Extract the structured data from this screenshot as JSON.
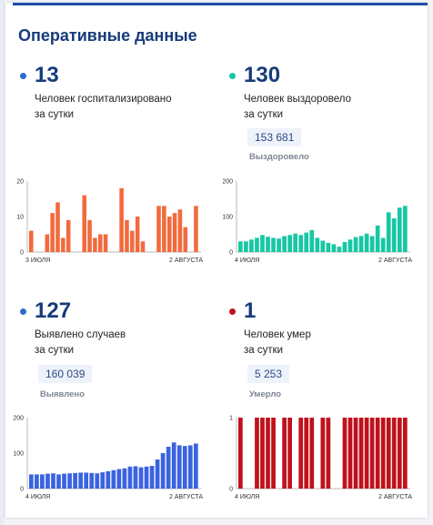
{
  "title": "Оперативные данные",
  "colors": {
    "hospitalized": "#f26a3d",
    "recovered": "#17c7a4",
    "cases": "#3a63e0",
    "deaths": "#c0121c",
    "title": "#173b7a"
  },
  "stats": {
    "hospitalized": {
      "value": "13",
      "line1": "Человек госпитализировано",
      "line2": "за сутки",
      "dot_color": "#2d6bd0"
    },
    "recovered": {
      "value": "130",
      "line1": "Человек выздоровело",
      "line2": "за сутки",
      "total": "153 681",
      "total_label": "Выздоровело",
      "dot_color": "#17c7a4"
    },
    "cases": {
      "value": "127",
      "line1": "Выявлено случаев",
      "line2": "за сутки",
      "total": "160 039",
      "total_label": "Выявлено",
      "dot_color": "#2d6bd0"
    },
    "deaths": {
      "value": "1",
      "line1": "Человек умер",
      "line2": "за сутки",
      "total": "5 253",
      "total_label": "Умерло",
      "dot_color": "#c0121c"
    }
  },
  "chart_data": [
    {
      "type": "bar",
      "id": "hospitalized",
      "color": "#f26a3d",
      "x_start": "3 ИЮЛЯ",
      "x_end": "2 АВГУСТА",
      "yticks": [
        "0",
        "10",
        "20"
      ],
      "ylim": [
        0,
        20
      ],
      "values": [
        6,
        0,
        0,
        5,
        11,
        14,
        4,
        9,
        0,
        0,
        16,
        9,
        4,
        5,
        5,
        0,
        0,
        18,
        9,
        6,
        10,
        3,
        0,
        0,
        13,
        13,
        10,
        11,
        12,
        7,
        0,
        13
      ]
    },
    {
      "type": "bar",
      "id": "recovered",
      "color": "#17c7a4",
      "x_start": "4 ИЮЛЯ",
      "x_end": "2 АВГУСТА",
      "yticks": [
        "0",
        "100",
        "200"
      ],
      "ylim": [
        0,
        200
      ],
      "values": [
        30,
        30,
        35,
        40,
        48,
        43,
        40,
        38,
        45,
        48,
        52,
        48,
        55,
        62,
        40,
        32,
        26,
        22,
        15,
        28,
        35,
        42,
        45,
        52,
        45,
        75,
        40,
        112,
        95,
        125,
        130
      ]
    },
    {
      "type": "bar",
      "id": "cases",
      "color": "#3a63e0",
      "x_start": "4 ИЮЛЯ",
      "x_end": "2 АВГУСТА",
      "yticks": [
        "0",
        "100",
        "200"
      ],
      "ylim": [
        0,
        200
      ],
      "values": [
        40,
        40,
        40,
        42,
        43,
        40,
        42,
        43,
        44,
        45,
        45,
        44,
        43,
        46,
        49,
        52,
        55,
        57,
        62,
        63,
        60,
        62,
        64,
        82,
        100,
        118,
        130,
        122,
        120,
        122,
        127
      ]
    },
    {
      "type": "bar",
      "id": "deaths",
      "color": "#c0121c",
      "x_start": "4 ИЮЛЯ",
      "x_end": "2 АВГУСТА",
      "yticks": [
        "0",
        "1"
      ],
      "ylim": [
        0,
        1
      ],
      "values": [
        1,
        0,
        0,
        1,
        1,
        1,
        1,
        0,
        1,
        1,
        0,
        1,
        1,
        1,
        0,
        1,
        1,
        0,
        0,
        1,
        1,
        1,
        1,
        1,
        1,
        1,
        1,
        1,
        1,
        1,
        1
      ]
    }
  ]
}
